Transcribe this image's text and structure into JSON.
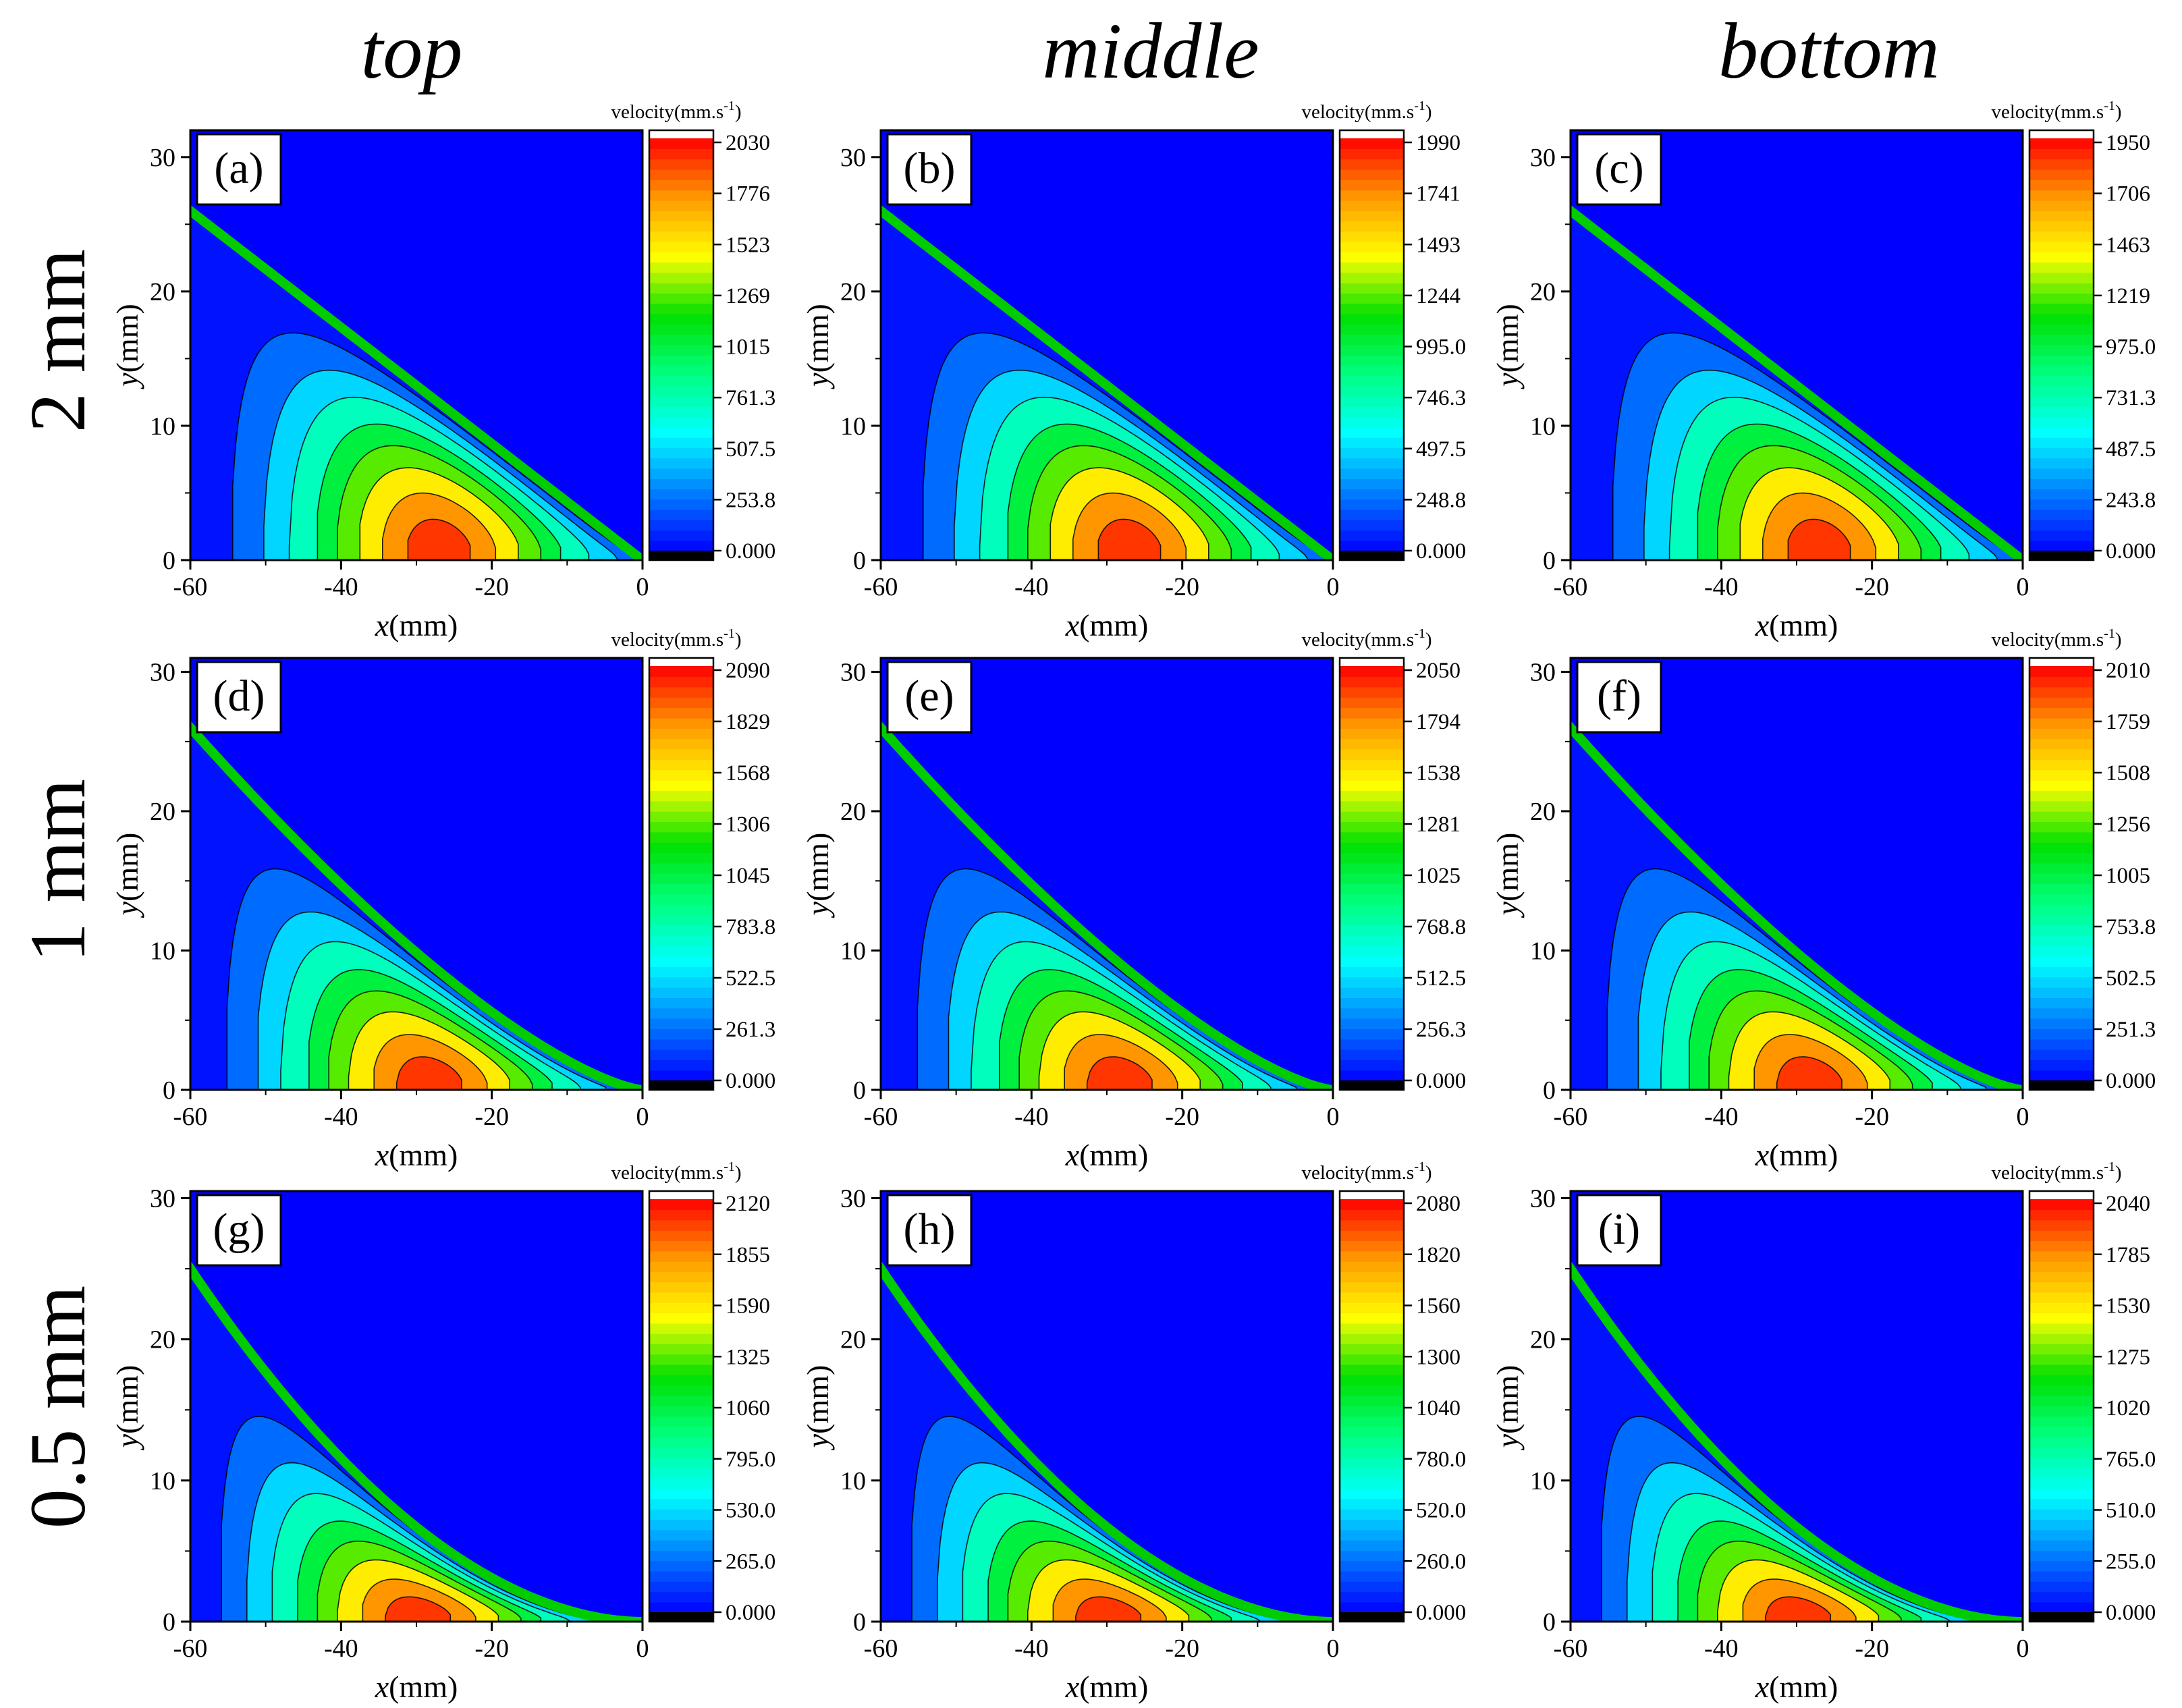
{
  "column_headers": [
    "top",
    "middle",
    "bottom"
  ],
  "row_headers": [
    "2 mm",
    "1 mm",
    "0.5 mm"
  ],
  "colors": {
    "background_field": "#0000ff",
    "colormap": [
      "#000000",
      "#0000ff",
      "#0080ff",
      "#00ffff",
      "#00ff80",
      "#00e000",
      "#ffff00",
      "#ff9900",
      "#ff0000",
      "#ffffff"
    ],
    "contour_line": "#000000"
  },
  "chart_data": [
    {
      "type": "heatmap",
      "panel": "(a)",
      "row_label": "2 mm",
      "column_label": "top",
      "xlabel_var": "x",
      "xlabel_unit": "(mm)",
      "ylabel_var": "y",
      "ylabel_unit": "(mm)",
      "xlim": [
        -60,
        0
      ],
      "ylim": [
        0,
        32
      ],
      "xticks": [
        "-60",
        "-40",
        "-20",
        "0"
      ],
      "yticks": [
        "0",
        "10",
        "20",
        "30"
      ],
      "colorbar_title": "velocity(mm.s",
      "colorbar_exp": "-1",
      "colorbar_close": ")",
      "colorbar_ticks": [
        "0.000",
        "253.8",
        "507.5",
        "761.3",
        "1015",
        "1269",
        "1523",
        "1776",
        "2030"
      ],
      "vmin": 0,
      "vmax": 2030,
      "front_top_y": 26,
      "front_slope": 1.0
    },
    {
      "type": "heatmap",
      "panel": "(b)",
      "row_label": "2 mm",
      "column_label": "middle",
      "xlabel_var": "x",
      "xlabel_unit": "(mm)",
      "ylabel_var": "y",
      "ylabel_unit": "(mm)",
      "xlim": [
        -60,
        0
      ],
      "ylim": [
        0,
        32
      ],
      "xticks": [
        "-60",
        "-40",
        "-20",
        "0"
      ],
      "yticks": [
        "0",
        "10",
        "20",
        "30"
      ],
      "colorbar_title": "velocity(mm.s",
      "colorbar_exp": "-1",
      "colorbar_close": ")",
      "colorbar_ticks": [
        "0.000",
        "248.8",
        "497.5",
        "746.3",
        "995.0",
        "1244",
        "1493",
        "1741",
        "1990"
      ],
      "vmin": 0,
      "vmax": 1990,
      "front_top_y": 26,
      "front_slope": 1.0
    },
    {
      "type": "heatmap",
      "panel": "(c)",
      "row_label": "2 mm",
      "column_label": "bottom",
      "xlabel_var": "x",
      "xlabel_unit": "(mm)",
      "ylabel_var": "y",
      "ylabel_unit": "(mm)",
      "xlim": [
        -60,
        0
      ],
      "ylim": [
        0,
        32
      ],
      "xticks": [
        "-60",
        "-40",
        "-20",
        "0"
      ],
      "yticks": [
        "0",
        "10",
        "20",
        "30"
      ],
      "colorbar_title": "velocity(mm.s",
      "colorbar_exp": "-1",
      "colorbar_close": ")",
      "colorbar_ticks": [
        "0.000",
        "243.8",
        "487.5",
        "731.3",
        "975.0",
        "1219",
        "1463",
        "1706",
        "1950"
      ],
      "vmin": 0,
      "vmax": 1950,
      "front_top_y": 26,
      "front_slope": 1.0
    },
    {
      "type": "heatmap",
      "panel": "(d)",
      "row_label": "1 mm",
      "column_label": "top",
      "xlabel_var": "x",
      "xlabel_unit": "(mm)",
      "ylabel_var": "y",
      "ylabel_unit": "(mm)",
      "xlim": [
        -60,
        0
      ],
      "ylim": [
        0,
        31
      ],
      "xticks": [
        "-60",
        "-40",
        "-20",
        "0"
      ],
      "yticks": [
        "0",
        "10",
        "20",
        "30"
      ],
      "colorbar_title": "velocity(mm.s",
      "colorbar_exp": "-1",
      "colorbar_close": ")",
      "colorbar_ticks": [
        "0.000",
        "261.3",
        "522.5",
        "783.8",
        "1045",
        "1306",
        "1568",
        "1829",
        "2090"
      ],
      "vmin": 0,
      "vmax": 2090,
      "front_top_y": 26,
      "front_slope": 1.4
    },
    {
      "type": "heatmap",
      "panel": "(e)",
      "row_label": "1 mm",
      "column_label": "middle",
      "xlabel_var": "x",
      "xlabel_unit": "(mm)",
      "ylabel_var": "y",
      "ylabel_unit": "(mm)",
      "xlim": [
        -60,
        0
      ],
      "ylim": [
        0,
        31
      ],
      "xticks": [
        "-60",
        "-40",
        "-20",
        "0"
      ],
      "yticks": [
        "0",
        "10",
        "20",
        "30"
      ],
      "colorbar_title": "velocity(mm.s",
      "colorbar_exp": "-1",
      "colorbar_close": ")",
      "colorbar_ticks": [
        "0.000",
        "256.3",
        "512.5",
        "768.8",
        "1025",
        "1281",
        "1538",
        "1794",
        "2050"
      ],
      "vmin": 0,
      "vmax": 2050,
      "front_top_y": 26,
      "front_slope": 1.4
    },
    {
      "type": "heatmap",
      "panel": "(f)",
      "row_label": "1 mm",
      "column_label": "bottom",
      "xlabel_var": "x",
      "xlabel_unit": "(mm)",
      "ylabel_var": "y",
      "ylabel_unit": "(mm)",
      "xlim": [
        -60,
        0
      ],
      "ylim": [
        0,
        31
      ],
      "xticks": [
        "-60",
        "-40",
        "-20",
        "0"
      ],
      "yticks": [
        "0",
        "10",
        "20",
        "30"
      ],
      "colorbar_title": "velocity(mm.s",
      "colorbar_exp": "-1",
      "colorbar_close": ")",
      "colorbar_ticks": [
        "0.000",
        "251.3",
        "502.5",
        "753.8",
        "1005",
        "1256",
        "1508",
        "1759",
        "2010"
      ],
      "vmin": 0,
      "vmax": 2010,
      "front_top_y": 26,
      "front_slope": 1.4
    },
    {
      "type": "heatmap",
      "panel": "(g)",
      "row_label": "0.5 mm",
      "column_label": "top",
      "xlabel_var": "x",
      "xlabel_unit": "(mm)",
      "ylabel_var": "y",
      "ylabel_unit": "(mm)",
      "xlim": [
        -60,
        0
      ],
      "ylim": [
        0,
        30.5
      ],
      "xticks": [
        "-60",
        "-40",
        "-20",
        "0"
      ],
      "yticks": [
        "0",
        "10",
        "20",
        "30"
      ],
      "colorbar_title": "velocity(mm.s",
      "colorbar_exp": "-1",
      "colorbar_close": ")",
      "colorbar_ticks": [
        "0.000",
        "265.0",
        "530.0",
        "795.0",
        "1060",
        "1325",
        "1590",
        "1855",
        "2120"
      ],
      "vmin": 0,
      "vmax": 2120,
      "front_top_y": 25,
      "front_slope": 1.9
    },
    {
      "type": "heatmap",
      "panel": "(h)",
      "row_label": "0.5 mm",
      "column_label": "middle",
      "xlabel_var": "x",
      "xlabel_unit": "(mm)",
      "ylabel_var": "y",
      "ylabel_unit": "(mm)",
      "xlim": [
        -60,
        0
      ],
      "ylim": [
        0,
        30.5
      ],
      "xticks": [
        "-60",
        "-40",
        "-20",
        "0"
      ],
      "yticks": [
        "0",
        "10",
        "20",
        "30"
      ],
      "colorbar_title": "velocity(mm.s",
      "colorbar_exp": "-1",
      "colorbar_close": ")",
      "colorbar_ticks": [
        "0.000",
        "260.0",
        "520.0",
        "780.0",
        "1040",
        "1300",
        "1560",
        "1820",
        "2080"
      ],
      "vmin": 0,
      "vmax": 2080,
      "front_top_y": 25,
      "front_slope": 1.9
    },
    {
      "type": "heatmap",
      "panel": "(i)",
      "row_label": "0.5 mm",
      "column_label": "bottom",
      "xlabel_var": "x",
      "xlabel_unit": "(mm)",
      "ylabel_var": "y",
      "ylabel_unit": "(mm)",
      "xlim": [
        -60,
        0
      ],
      "ylim": [
        0,
        30.5
      ],
      "xticks": [
        "-60",
        "-40",
        "-20",
        "0"
      ],
      "yticks": [
        "0",
        "10",
        "20",
        "30"
      ],
      "colorbar_title": "velocity(mm.s",
      "colorbar_exp": "-1",
      "colorbar_close": ")",
      "colorbar_ticks": [
        "0.000",
        "255.0",
        "510.0",
        "765.0",
        "1020",
        "1275",
        "1530",
        "1785",
        "2040"
      ],
      "vmin": 0,
      "vmax": 2040,
      "front_top_y": 25,
      "front_slope": 1.9
    }
  ]
}
